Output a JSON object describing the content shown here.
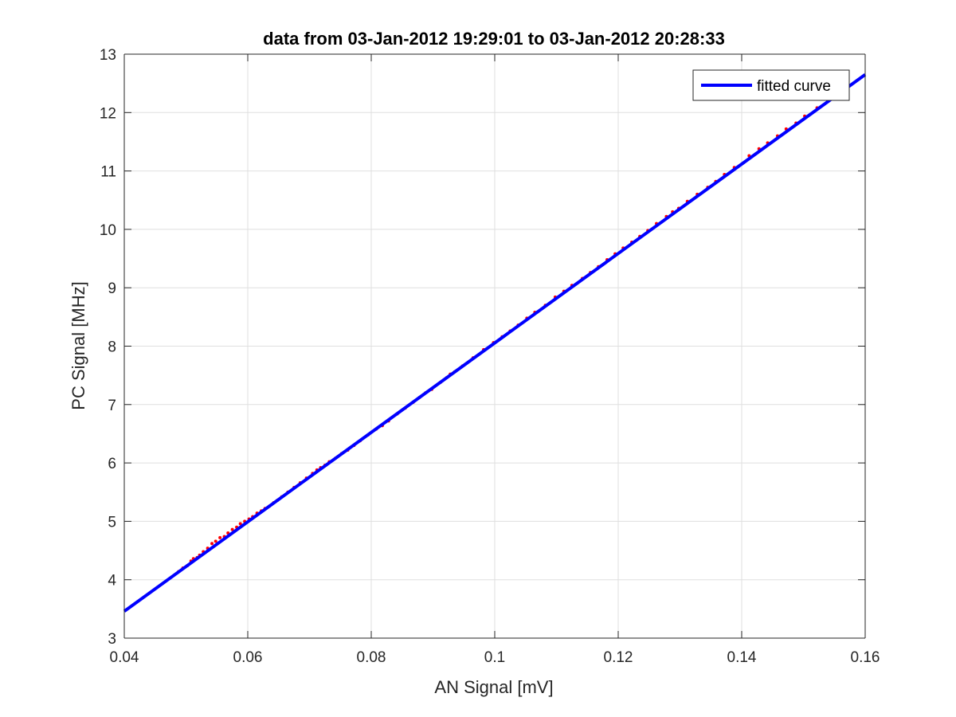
{
  "chart_data": {
    "type": "scatter",
    "title": "data from 03-Jan-2012 19:29:01 to 03-Jan-2012 20:28:33",
    "xlabel": "AN Signal [mV]",
    "ylabel": "PC Signal [MHz]",
    "xlim": [
      0.04,
      0.16
    ],
    "ylim": [
      3,
      13
    ],
    "xticks": [
      0.04,
      0.06,
      0.08,
      0.1,
      0.12,
      0.14,
      0.16
    ],
    "xtick_labels": [
      "0.04",
      "0.06",
      "0.08",
      "0.1",
      "0.12",
      "0.14",
      "0.16"
    ],
    "yticks": [
      3,
      4,
      5,
      6,
      7,
      8,
      9,
      10,
      11,
      12,
      13
    ],
    "ytick_labels": [
      "3",
      "4",
      "5",
      "6",
      "7",
      "8",
      "9",
      "10",
      "11",
      "12",
      "13"
    ],
    "grid": true,
    "legend_position": "top-right",
    "series": [
      {
        "name": "fitted curve",
        "kind": "line",
        "color": "#0000ff",
        "x": [
          0.04,
          0.16
        ],
        "y": [
          3.46,
          12.65
        ]
      },
      {
        "kind": "scatter",
        "color": "#ff0000",
        "x": [
          0.0488,
          0.0495,
          0.0502,
          0.0508,
          0.0512,
          0.0518,
          0.0522,
          0.0528,
          0.0535,
          0.0542,
          0.0548,
          0.0555,
          0.0562,
          0.0568,
          0.0575,
          0.0582,
          0.0588,
          0.0595,
          0.0602,
          0.0608,
          0.0615,
          0.0622,
          0.0628,
          0.0635,
          0.0642,
          0.0648,
          0.0655,
          0.0665,
          0.0675,
          0.0685,
          0.0695,
          0.0705,
          0.0712,
          0.0718,
          0.0725,
          0.0732,
          0.0742,
          0.0752,
          0.0762,
          0.0772,
          0.0782,
          0.0795,
          0.0808,
          0.0818,
          0.0828,
          0.0842,
          0.0855,
          0.0868,
          0.0878,
          0.0888,
          0.0898,
          0.0912,
          0.0922,
          0.0928,
          0.0935,
          0.0948,
          0.0965,
          0.0982,
          0.0998,
          0.1012,
          0.1025,
          0.1038,
          0.1052,
          0.1065,
          0.1082,
          0.1098,
          0.1112,
          0.1125,
          0.1142,
          0.1155,
          0.1168,
          0.1182,
          0.1195,
          0.1208,
          0.1222,
          0.1235,
          0.1248,
          0.1262,
          0.1278,
          0.1288,
          0.1298,
          0.1312,
          0.1328,
          0.1345,
          0.1358,
          0.1372,
          0.1388,
          0.1412,
          0.1428,
          0.1442,
          0.1458,
          0.1472,
          0.1488,
          0.1502,
          0.1522
        ],
        "y": [
          4.14,
          4.2,
          4.24,
          4.32,
          4.36,
          4.38,
          4.42,
          4.48,
          4.54,
          4.62,
          4.66,
          4.72,
          4.74,
          4.8,
          4.86,
          4.9,
          4.96,
          5.0,
          5.04,
          5.08,
          5.14,
          5.18,
          5.22,
          5.26,
          5.32,
          5.36,
          5.42,
          5.5,
          5.58,
          5.66,
          5.74,
          5.82,
          5.88,
          5.92,
          5.96,
          6.02,
          6.08,
          6.16,
          6.22,
          6.3,
          6.38,
          6.48,
          6.58,
          6.64,
          6.72,
          6.84,
          6.94,
          7.04,
          7.12,
          7.2,
          7.26,
          7.38,
          7.46,
          7.52,
          7.56,
          7.66,
          7.8,
          7.94,
          8.06,
          8.16,
          8.26,
          8.36,
          8.48,
          8.58,
          8.7,
          8.84,
          8.94,
          9.04,
          9.16,
          9.26,
          9.36,
          9.48,
          9.58,
          9.68,
          9.78,
          9.88,
          9.98,
          10.1,
          10.22,
          10.3,
          10.36,
          10.48,
          10.6,
          10.72,
          10.82,
          10.94,
          11.06,
          11.26,
          11.38,
          11.48,
          11.6,
          11.72,
          11.82,
          11.94,
          12.08
        ]
      }
    ]
  }
}
